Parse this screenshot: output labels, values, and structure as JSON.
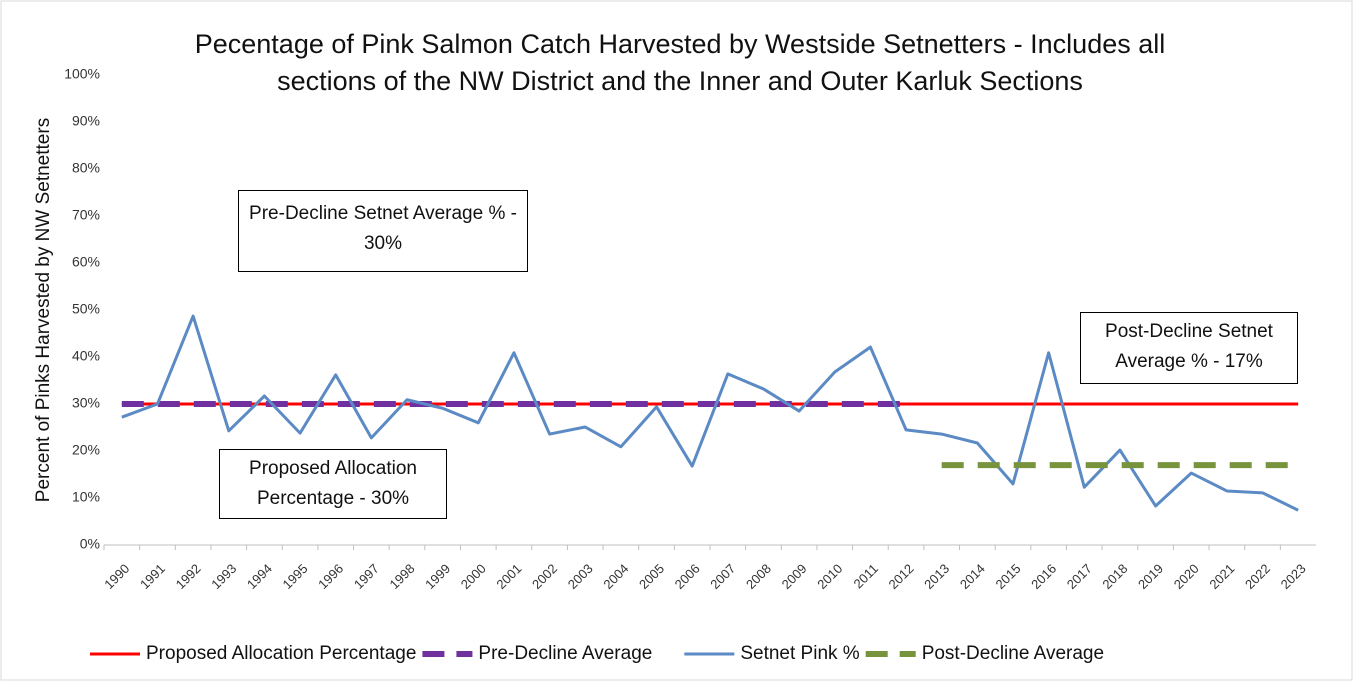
{
  "chart_data": {
    "type": "line",
    "title": "Pecentage of Pink Salmon Catch Harvested by Westside Setnetters - Includes all sections of the NW District and the Inner and Outer Karluk Sections",
    "y_label": "Percent of Pinks Harvested by NW Setnetters",
    "categories": [
      "1990",
      "1991",
      "1992",
      "1993",
      "1994",
      "1995",
      "1996",
      "1997",
      "1998",
      "1999",
      "2000",
      "2001",
      "2002",
      "2003",
      "2004",
      "2005",
      "2006",
      "2007",
      "2008",
      "2009",
      "2010",
      "2011",
      "2012",
      "2013",
      "2014",
      "2015",
      "2016",
      "2017",
      "2018",
      "2019",
      "2020",
      "2021",
      "2022",
      "2023"
    ],
    "series": [
      {
        "name": "Proposed Allocation Percentage",
        "color": "#ff0000",
        "dash": false,
        "values": [
          30,
          30,
          30,
          30,
          30,
          30,
          30,
          30,
          30,
          30,
          30,
          30,
          30,
          30,
          30,
          30,
          30,
          30,
          30,
          30,
          30,
          30,
          30,
          30,
          30,
          30,
          30,
          30,
          30,
          30,
          30,
          30,
          30,
          30
        ]
      },
      {
        "name": "Pre-Decline Average",
        "color": "#7030a0",
        "dash": true,
        "values": [
          30,
          30,
          30,
          30,
          30,
          30,
          30,
          30,
          30,
          30,
          30,
          30,
          30,
          30,
          30,
          30,
          30,
          30,
          30,
          30,
          30,
          30,
          30,
          null,
          null,
          null,
          null,
          null,
          null,
          null,
          null,
          null,
          null,
          null
        ]
      },
      {
        "name": "Setnet Pink %",
        "color": "#5b8ac4",
        "dash": false,
        "values": [
          27.2,
          30,
          48.7,
          24.3,
          31.7,
          23.8,
          36.2,
          22.8,
          30.9,
          29.1,
          26,
          40.9,
          23.6,
          25.1,
          20.9,
          29.4,
          16.8,
          36.4,
          33.2,
          28.5,
          36.8,
          42.1,
          24.5,
          23.6,
          21.7,
          13,
          40.9,
          12.3,
          20.2,
          8.3,
          15.3,
          11.5,
          11.1,
          7.4
        ]
      },
      {
        "name": "Post-Decline Average",
        "color": "#77933c",
        "dash": true,
        "values": [
          null,
          null,
          null,
          null,
          null,
          null,
          null,
          null,
          null,
          null,
          null,
          null,
          null,
          null,
          null,
          null,
          null,
          null,
          null,
          null,
          null,
          null,
          null,
          17,
          17,
          17,
          17,
          17,
          17,
          17,
          17,
          17,
          17,
          17
        ]
      }
    ],
    "ylim": [
      0,
      100
    ],
    "yticks": [
      {
        "value": 0,
        "label": "0%"
      },
      {
        "value": 10,
        "label": "10%"
      },
      {
        "value": 20,
        "label": "20%"
      },
      {
        "value": 30,
        "label": "30%"
      },
      {
        "value": 40,
        "label": "40%"
      },
      {
        "value": 50,
        "label": "50%"
      },
      {
        "value": 60,
        "label": "60%"
      },
      {
        "value": 70,
        "label": "70%"
      },
      {
        "value": 80,
        "label": "80%"
      },
      {
        "value": 90,
        "label": "90%"
      },
      {
        "value": 100,
        "label": "100%"
      }
    ],
    "grid": false,
    "legend": "bottom",
    "annotations": [
      "Pre-Decline Setnet Average % - 30%",
      "Post-Decline Setnet Average % - 17%",
      "Proposed Allocation Percentage - 30%"
    ]
  }
}
